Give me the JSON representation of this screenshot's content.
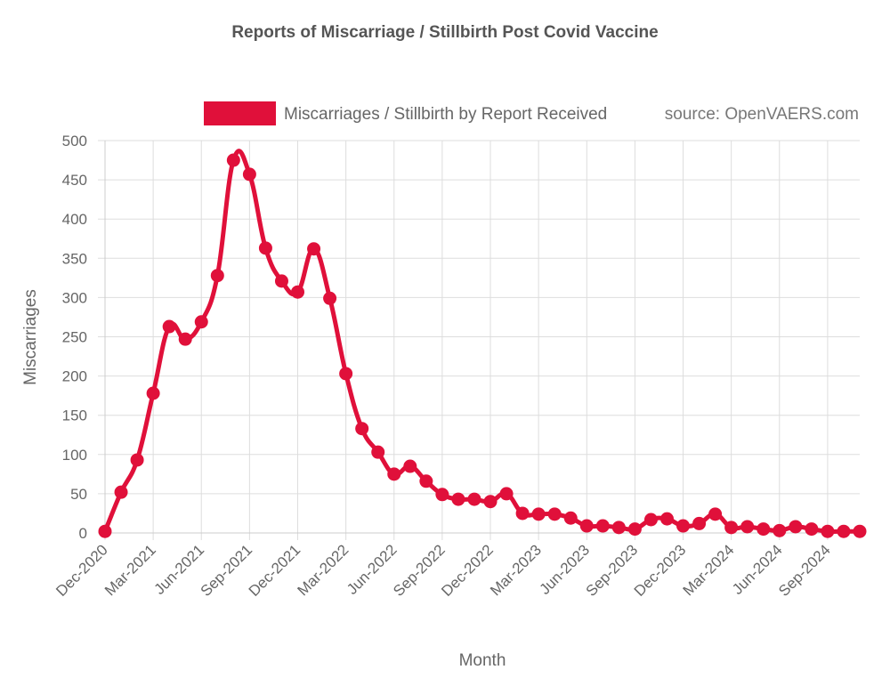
{
  "chart_data": {
    "type": "line",
    "title": "Reports of Miscarriage / Stillbirth Post Covid Vaccine",
    "xlabel": "Month",
    "ylabel": "Miscarriages",
    "ylim": [
      0,
      500
    ],
    "yticks": [
      0,
      50,
      100,
      150,
      200,
      250,
      300,
      350,
      400,
      450,
      500
    ],
    "xtick_labels": [
      "Dec-2020",
      "Mar-2021",
      "Jun-2021",
      "Sep-2021",
      "Dec-2021",
      "Mar-2022",
      "Jun-2022",
      "Sep-2022",
      "Dec-2022",
      "Mar-2023",
      "Jun-2023",
      "Sep-2023",
      "Dec-2023",
      "Mar-2024",
      "Jun-2024",
      "Sep-2024"
    ],
    "grid": true,
    "legend_position": "top",
    "source_note": "source: OpenVAERS.com",
    "series": [
      {
        "name": "Miscarriages / Stillbirth by Report Received",
        "color": "#e0103a",
        "values": [
          2,
          52,
          93,
          178,
          263,
          247,
          269,
          328,
          475,
          457,
          363,
          321,
          307,
          362,
          299,
          203,
          133,
          103,
          75,
          85,
          66,
          49,
          43,
          43,
          40,
          50,
          25,
          24,
          24,
          19,
          9,
          9,
          7,
          5,
          17,
          18,
          9,
          12,
          24,
          7,
          8,
          5,
          3,
          8,
          5,
          2,
          2,
          2
        ]
      }
    ]
  }
}
